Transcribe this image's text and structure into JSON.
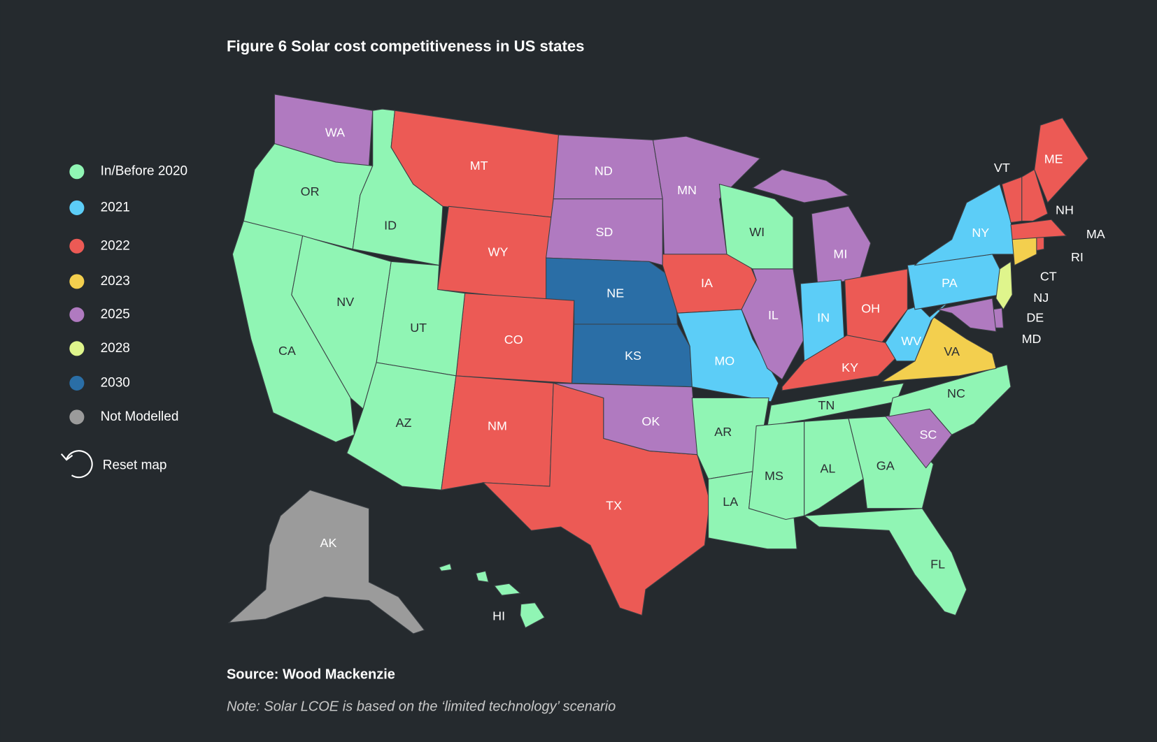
{
  "title": "Figure 6 Solar cost competitiveness in US states",
  "legend": [
    {
      "label": "In/Before 2020",
      "color": "#90f5b4"
    },
    {
      "label": "2021",
      "color": "#5ccdf7"
    },
    {
      "label": "2022",
      "color": "#ec5a55"
    },
    {
      "label": "2023",
      "color": "#f3cf4e"
    },
    {
      "label": "2025",
      "color": "#b07ac0"
    },
    {
      "label": "2028",
      "color": "#dff58c"
    },
    {
      "label": "2030",
      "color": "#2a6ea6"
    },
    {
      "label": "Not Modelled",
      "color": "#9b9b9b"
    }
  ],
  "reset_label": "Reset map",
  "states": [
    {
      "label": "WA",
      "category": "2025"
    },
    {
      "label": "OR",
      "category": "In/Before 2020"
    },
    {
      "label": "ID",
      "category": "In/Before 2020"
    },
    {
      "label": "MT",
      "category": "2022"
    },
    {
      "label": "WY",
      "category": "2022"
    },
    {
      "label": "ND",
      "category": "2025"
    },
    {
      "label": "SD",
      "category": "2025"
    },
    {
      "label": "NE",
      "category": "2030"
    },
    {
      "label": "KS",
      "category": "2030"
    },
    {
      "label": "CO",
      "category": "2022"
    },
    {
      "label": "UT",
      "category": "In/Before 2020"
    },
    {
      "label": "NV",
      "category": "In/Before 2020"
    },
    {
      "label": "CA",
      "category": "In/Before 2020"
    },
    {
      "label": "AZ",
      "category": "In/Before 2020"
    },
    {
      "label": "NM",
      "category": "2022"
    },
    {
      "label": "TX",
      "category": "2022"
    },
    {
      "label": "OK",
      "category": "2025"
    },
    {
      "label": "MN",
      "category": "2025"
    },
    {
      "label": "IA",
      "category": "2022"
    },
    {
      "label": "MO",
      "category": "2021"
    },
    {
      "label": "AR",
      "category": "In/Before 2020"
    },
    {
      "label": "LA",
      "category": "In/Before 2020"
    },
    {
      "label": "WI",
      "category": "In/Before 2020"
    },
    {
      "label": "IL",
      "category": "2025"
    },
    {
      "label": "MI",
      "category": "2025"
    },
    {
      "label": "IN",
      "category": "2021"
    },
    {
      "label": "OH",
      "category": "2022"
    },
    {
      "label": "KY",
      "category": "2022"
    },
    {
      "label": "TN",
      "category": "In/Before 2020"
    },
    {
      "label": "MS",
      "category": "In/Before 2020"
    },
    {
      "label": "AL",
      "category": "In/Before 2020"
    },
    {
      "label": "GA",
      "category": "In/Before 2020"
    },
    {
      "label": "FL",
      "category": "In/Before 2020"
    },
    {
      "label": "SC",
      "category": "2025"
    },
    {
      "label": "NC",
      "category": "In/Before 2020"
    },
    {
      "label": "VA",
      "category": "2023"
    },
    {
      "label": "WV",
      "category": "2021"
    },
    {
      "label": "PA",
      "category": "2021"
    },
    {
      "label": "NY",
      "category": "2021"
    },
    {
      "label": "NJ",
      "category": "2028"
    },
    {
      "label": "DE",
      "category": "2025"
    },
    {
      "label": "MD",
      "category": "2025"
    },
    {
      "label": "CT",
      "category": "2023"
    },
    {
      "label": "RI",
      "category": "2022"
    },
    {
      "label": "MA",
      "category": "2022"
    },
    {
      "label": "VT",
      "category": "2022"
    },
    {
      "label": "NH",
      "category": "2022"
    },
    {
      "label": "ME",
      "category": "2022"
    },
    {
      "label": "AK",
      "category": "Not Modelled"
    },
    {
      "label": "HI",
      "category": "In/Before 2020"
    }
  ],
  "source": "Source: Wood Mackenzie",
  "note": "Note: Solar LCOE is based on the ‘limited technology’ scenario"
}
